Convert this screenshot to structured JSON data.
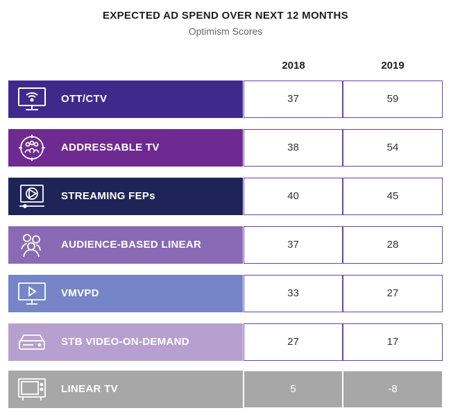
{
  "header": {
    "title": "EXPECTED AD SPEND OVER NEXT 12 MONTHS",
    "subtitle": "Optimism Scores"
  },
  "chart_data": {
    "type": "table",
    "title": "EXPECTED AD SPEND OVER NEXT 12 MONTHS",
    "subtitle": "Optimism Scores",
    "columns": [
      "2018",
      "2019"
    ],
    "rows": [
      {
        "label": "OTT/CTV",
        "icon": "tv-wifi-icon",
        "color": "#3f2a8c",
        "values": [
          "37",
          "59"
        ]
      },
      {
        "label": "ADDRESSABLE TV",
        "icon": "audience-target-icon",
        "color": "#6e2a90",
        "values": [
          "38",
          "54"
        ]
      },
      {
        "label": "STREAMING FEPs",
        "icon": "video-player-icon",
        "color": "#1f2458",
        "values": [
          "40",
          "45"
        ]
      },
      {
        "label": "AUDIENCE-BASED LINEAR",
        "icon": "people-group-icon",
        "color": "#8a6ab5",
        "values": [
          "37",
          "28"
        ]
      },
      {
        "label": "VMVPD",
        "icon": "monitor-play-icon",
        "color": "#7585c7",
        "values": [
          "33",
          "27"
        ]
      },
      {
        "label": "STB VIDEO-ON-DEMAND",
        "icon": "set-top-box-icon",
        "color": "#b7a0cf",
        "values": [
          "27",
          "17"
        ]
      },
      {
        "label": "LINEAR TV",
        "icon": "television-icon",
        "color": "#a7a7a7",
        "values": [
          "5",
          "-8"
        ]
      }
    ]
  }
}
